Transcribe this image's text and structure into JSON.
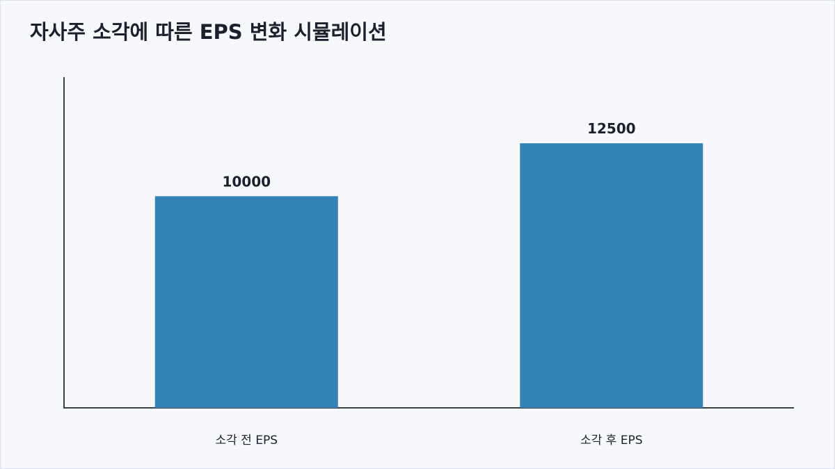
{
  "chart_data": {
    "type": "bar",
    "title": "자사주 소각에 따른 EPS 변화 시뮬레이션",
    "categories": [
      "소각 전 EPS",
      "소각 후 EPS"
    ],
    "values": [
      10000,
      12500
    ],
    "xlabel": "",
    "ylabel": "",
    "ylim": [
      0,
      15625
    ],
    "grid": false,
    "colors": {
      "bar": "#3382b8",
      "axis": "#3a3d4a",
      "text": "#1d1f2b"
    }
  }
}
